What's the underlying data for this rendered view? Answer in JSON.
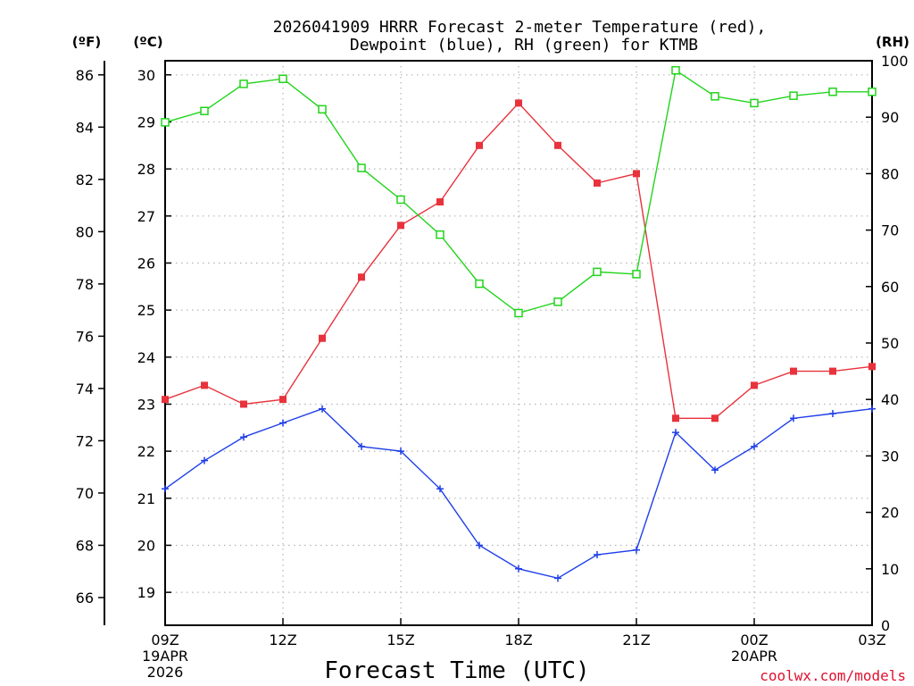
{
  "header": {
    "title_line1": "2026041909 HRRR Forecast 2-meter Temperature (red),",
    "title_line2": "Dewpoint (blue), RH (green) for KTMB"
  },
  "units": {
    "fahrenheit": "(ºF)",
    "celsius": "(ºC)",
    "rh": "(RH)"
  },
  "footer": {
    "xlabel": "Forecast Time (UTC)",
    "credit": "coolwx.com/models"
  },
  "colors": {
    "temperature": "#e8323c",
    "dewpoint": "#1f3fe8",
    "rh": "#22d41c",
    "credit": "#e0102f"
  },
  "chart_data": {
    "type": "line",
    "title": "2026041909 HRRR Forecast 2-meter Temperature (red), Dewpoint (blue), RH (green) for KTMB",
    "xlabel": "Forecast Time (UTC)",
    "x_hours": [
      0,
      1,
      2,
      3,
      4,
      5,
      6,
      7,
      8,
      9,
      10,
      11,
      12,
      13,
      14,
      15,
      16,
      17,
      18
    ],
    "x_ticks": [
      {
        "hour": 0,
        "labels": [
          "09Z",
          "19APR",
          "2026"
        ]
      },
      {
        "hour": 3,
        "labels": [
          "12Z"
        ]
      },
      {
        "hour": 6,
        "labels": [
          "15Z"
        ]
      },
      {
        "hour": 9,
        "labels": [
          "18Z"
        ]
      },
      {
        "hour": 12,
        "labels": [
          "21Z"
        ]
      },
      {
        "hour": 15,
        "labels": [
          "00Z",
          "20APR"
        ]
      },
      {
        "hour": 18,
        "labels": [
          "03Z"
        ]
      }
    ],
    "xlim": [
      0,
      18
    ],
    "y_celsius": {
      "label": "(ºC)",
      "ylim": [
        18.3,
        30.3
      ],
      "ticks": [
        19,
        20,
        21,
        22,
        23,
        24,
        25,
        26,
        27,
        28,
        29,
        30
      ]
    },
    "y_fahrenheit": {
      "label": "(ºF)",
      "ticks": [
        66,
        68,
        70,
        72,
        74,
        76,
        78,
        80,
        82,
        84,
        86
      ]
    },
    "y_rh": {
      "label": "(RH)",
      "ylim": [
        0,
        100
      ],
      "ticks": [
        0,
        10,
        20,
        30,
        40,
        50,
        60,
        70,
        80,
        90,
        100
      ]
    },
    "grid": true,
    "series": [
      {
        "name": "Temperature",
        "axis": "celsius",
        "marker": "filled-square",
        "values": [
          23.1,
          23.4,
          23.0,
          23.1,
          24.4,
          25.7,
          26.8,
          27.3,
          28.5,
          29.4,
          28.5,
          27.7,
          27.9,
          22.7,
          22.7,
          23.4,
          23.7,
          23.7,
          23.8
        ]
      },
      {
        "name": "Dewpoint",
        "axis": "celsius",
        "marker": "plus",
        "values": [
          21.2,
          21.8,
          22.3,
          22.6,
          22.9,
          22.1,
          22.0,
          21.2,
          20.0,
          19.5,
          19.3,
          19.8,
          19.9,
          22.4,
          21.6,
          22.1,
          22.7,
          22.8,
          22.9
        ]
      },
      {
        "name": "RH",
        "axis": "rh",
        "marker": "open-square",
        "values": [
          89.1,
          91.1,
          95.9,
          96.8,
          91.4,
          81.0,
          75.4,
          69.2,
          60.5,
          55.3,
          57.3,
          62.6,
          62.2,
          98.3,
          93.7,
          92.5,
          93.8,
          94.5,
          94.5
        ]
      }
    ]
  }
}
